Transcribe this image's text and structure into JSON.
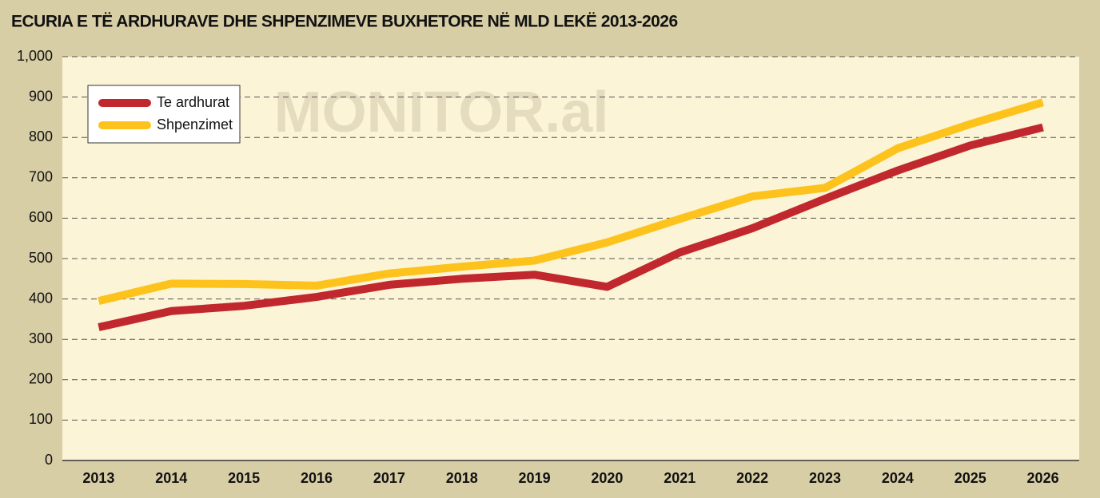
{
  "chart_data": {
    "type": "line",
    "title": "ECURIA E TË ARDHURAVE DHE SHPENZIMEVE BUXHETORE NË MLD LEKË 2013-2026",
    "watermark": "MONITOR.al",
    "categories": [
      "2013",
      "2014",
      "2015",
      "2016",
      "2017",
      "2018",
      "2019",
      "2020",
      "2021",
      "2022",
      "2023",
      "2024",
      "2025",
      "2026"
    ],
    "series": [
      {
        "name": "Te ardhurat",
        "color": "#c0282d",
        "values": [
          330,
          370,
          383,
          405,
          435,
          450,
          460,
          430,
          515,
          575,
          648,
          718,
          780,
          825
        ]
      },
      {
        "name": "Shpenzimet",
        "color": "#fdc31c",
        "values": [
          395,
          438,
          437,
          433,
          463,
          480,
          495,
          540,
          598,
          654,
          675,
          773,
          833,
          887
        ]
      }
    ],
    "ylim": [
      0,
      1000
    ],
    "yticks": [
      0,
      100,
      200,
      300,
      400,
      500,
      600,
      700,
      800,
      900,
      {
        "value": 1000,
        "label": "1,000"
      }
    ],
    "grid": true,
    "legend": "top-left"
  }
}
